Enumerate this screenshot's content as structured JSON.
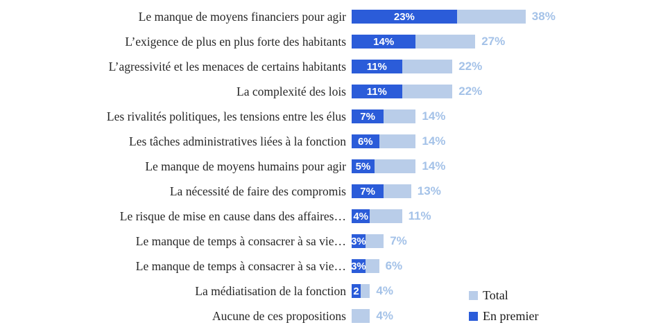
{
  "chart_data": {
    "type": "bar",
    "orientation": "horizontal",
    "title": "",
    "xlabel": "",
    "ylabel": "",
    "xlim": [
      0,
      40
    ],
    "grid": false,
    "legend_position": "bottom-right",
    "series_meta": [
      {
        "name": "Total",
        "color": "#b9cde9"
      },
      {
        "name": "En premier",
        "color": "#2b5cd9"
      }
    ],
    "value_label_colors": {
      "en_premier": "#ffffff",
      "total": "#a4c2e8"
    },
    "rows": [
      {
        "category": "Le manque de moyens financiers pour agir",
        "en_premier": 23,
        "total": 38,
        "en_premier_label": "23%",
        "total_label": "38%"
      },
      {
        "category": "L’exigence de plus en plus forte des habitants",
        "en_premier": 14,
        "total": 27,
        "en_premier_label": "14%",
        "total_label": "27%"
      },
      {
        "category": "L’agressivité et les menaces de certains habitants",
        "en_premier": 11,
        "total": 22,
        "en_premier_label": "11%",
        "total_label": "22%"
      },
      {
        "category": "La complexité des lois",
        "en_premier": 11,
        "total": 22,
        "en_premier_label": "11%",
        "total_label": "22%"
      },
      {
        "category": "Les rivalités politiques, les tensions entre les élus",
        "en_premier": 7,
        "total": 14,
        "en_premier_label": "7%",
        "total_label": "14%"
      },
      {
        "category": "Les tâches administratives liées à la fonction",
        "en_premier": 6,
        "total": 14,
        "en_premier_label": "6%",
        "total_label": "14%"
      },
      {
        "category": "Le manque de moyens humains pour agir",
        "en_premier": 5,
        "total": 14,
        "en_premier_label": "5%",
        "total_label": "14%"
      },
      {
        "category": "La nécessité de faire des compromis",
        "en_premier": 7,
        "total": 13,
        "en_premier_label": "7%",
        "total_label": "13%"
      },
      {
        "category": "Le risque de mise en cause dans des affaires…",
        "en_premier": 4,
        "total": 11,
        "en_premier_label": "4%",
        "total_label": "11%"
      },
      {
        "category": "Le manque de temps à consacrer à sa vie…",
        "en_premier": 3,
        "total": 7,
        "en_premier_label": "3%",
        "total_label": "7%"
      },
      {
        "category": "Le manque de temps à consacrer à sa vie…",
        "en_premier": 3,
        "total": 6,
        "en_premier_label": "3%",
        "total_label": "6%"
      },
      {
        "category": "La médiatisation de la fonction",
        "en_premier": 2,
        "total": 4,
        "en_premier_label": "2",
        "total_label": "4%"
      },
      {
        "category": "Aucune de ces propositions",
        "en_premier": 0,
        "total": 4,
        "en_premier_label": "",
        "total_label": "4%"
      }
    ]
  },
  "legend": {
    "items": [
      {
        "label": "Total",
        "color": "#b9cde9"
      },
      {
        "label": "En premier",
        "color": "#2b5cd9"
      }
    ]
  }
}
